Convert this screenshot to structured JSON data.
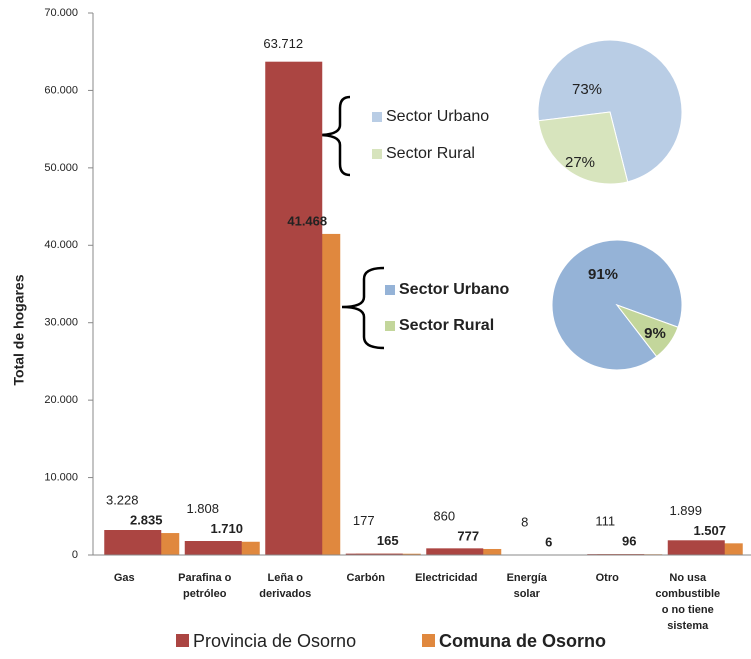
{
  "chart_data": [
    {
      "type": "bar",
      "ylabel": "Total de hogares",
      "categories": [
        [
          "Gas"
        ],
        [
          "Parafina o",
          "petróleo"
        ],
        [
          "Leña o",
          "derivados"
        ],
        [
          "Carbón"
        ],
        [
          "Electricidad"
        ],
        [
          "Energía",
          "solar"
        ],
        [
          "Otro"
        ],
        [
          "No usa",
          "combustible",
          "o no tiene",
          "sistema"
        ]
      ],
      "series": [
        {
          "name": "Provincia de Osorno",
          "color": "#ab4542",
          "bold_labels": false,
          "values": [
            3228,
            1808,
            63712,
            177,
            860,
            8,
            111,
            1899
          ],
          "value_labels": [
            "3.228",
            "1.808",
            "63.712",
            "177",
            "860",
            "8",
            "111",
            "1.899"
          ]
        },
        {
          "name": "Comuna de Osorno",
          "color": "#e0883e",
          "bold_labels": true,
          "values": [
            2835,
            1710,
            41468,
            165,
            777,
            6,
            96,
            1507
          ],
          "value_labels": [
            "2.835",
            "1.710",
            "41.468",
            "165",
            "777",
            "6",
            "96",
            "1.507"
          ]
        }
      ],
      "ylim": [
        0,
        70000
      ],
      "yticks": [
        0,
        {
          "value": 10000,
          "label": "10.000"
        },
        {
          "value": 20000,
          "label": "20.000"
        },
        {
          "value": 30000,
          "label": "30.000"
        },
        {
          "value": 40000,
          "label": "40.000"
        },
        {
          "value": 50000,
          "label": "50.000"
        },
        {
          "value": 60000,
          "label": "60.000"
        },
        {
          "value": 70000,
          "label": "70.000"
        }
      ],
      "legend": "bottom"
    },
    {
      "type": "pie",
      "bold_labels": false,
      "categories": [
        "Sector Urbano",
        "Sector Rural"
      ],
      "colors": [
        "#b9cde5",
        "#d7e4bd"
      ],
      "values": [
        73,
        27
      ],
      "value_labels": [
        "73%",
        "27%"
      ]
    },
    {
      "type": "pie",
      "bold_labels": true,
      "categories": [
        "Sector Urbano",
        "Sector Rural"
      ],
      "colors": [
        "#95b3d7",
        "#c3d69b"
      ],
      "values": [
        91,
        9
      ],
      "value_labels": [
        "91%",
        "9%"
      ]
    }
  ]
}
